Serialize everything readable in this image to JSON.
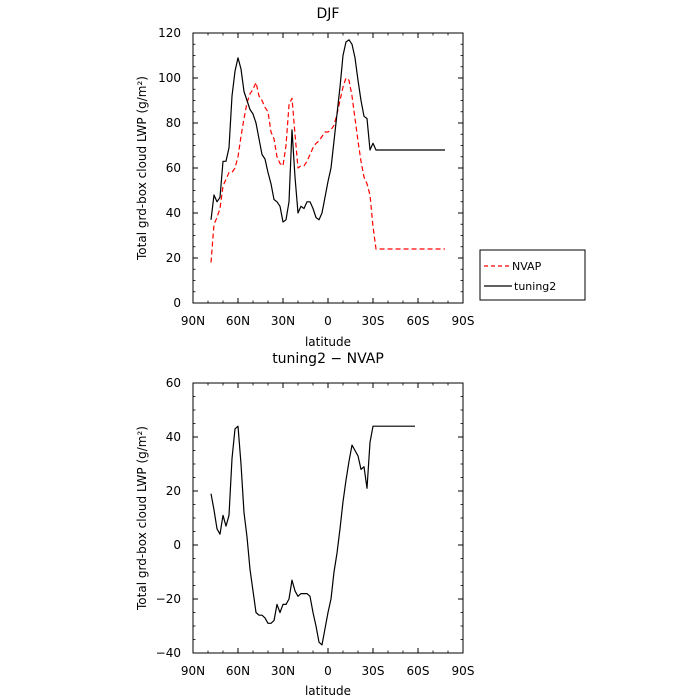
{
  "chart_data": [
    {
      "type": "line",
      "title": "DJF",
      "xlabel": "latitude",
      "ylabel": "Total grd-box cloud LWP (g/m²)",
      "xlim": [
        90,
        -90
      ],
      "ylim": [
        0,
        120
      ],
      "xticks": [
        90,
        60,
        30,
        0,
        -30,
        -60,
        -90
      ],
      "xtick_labels": [
        "90N",
        "60N",
        "30N",
        "0",
        "30S",
        "60S",
        "90S"
      ],
      "yticks": [
        0,
        20,
        40,
        60,
        80,
        100,
        120
      ],
      "ytick_labels": [
        "0",
        "20",
        "40",
        "60",
        "80",
        "100",
        "120"
      ],
      "grid": false,
      "legend": "outside-right",
      "series": [
        {
          "name": "NVAP",
          "color": "#ff0000",
          "dash": "dashed",
          "x": [
            78,
            76,
            74,
            72,
            70,
            68,
            66,
            64,
            62,
            60,
            58,
            56,
            54,
            52,
            50,
            48,
            46,
            44,
            42,
            40,
            38,
            36,
            34,
            32,
            30,
            28,
            26,
            24,
            22,
            20,
            18,
            16,
            14,
            12,
            10,
            8,
            6,
            4,
            2,
            0,
            -2,
            -4,
            -6,
            -8,
            -10,
            -12,
            -14,
            -16,
            -18,
            -20,
            -22,
            -24,
            -26,
            -28,
            -30,
            -32,
            -34,
            -36,
            -38,
            -40,
            -42,
            -44,
            -46,
            -48,
            -50,
            -52,
            -54,
            -56,
            -58,
            -60,
            -62,
            -64,
            -66,
            -68,
            -70,
            -72,
            -74,
            -76,
            -78
          ],
          "y": [
            18,
            35,
            38,
            42,
            52,
            55,
            58,
            58,
            60,
            65,
            74,
            82,
            89,
            93,
            95,
            98,
            92,
            90,
            87,
            85,
            76,
            73,
            65,
            62,
            61,
            70,
            88,
            91,
            75,
            60,
            61,
            61,
            63,
            66,
            69,
            71,
            72,
            74,
            76,
            76,
            77,
            79,
            84,
            90,
            96,
            100,
            99,
            92,
            82,
            72,
            63,
            56,
            53,
            48,
            34,
            24,
            24,
            24,
            24,
            24,
            24,
            24,
            24,
            24,
            24,
            24,
            24,
            24,
            24,
            24,
            24,
            24,
            24,
            24,
            24,
            24,
            24,
            24,
            24
          ]
        },
        {
          "name": "tuning2",
          "color": "#000000",
          "dash": "solid",
          "x": [
            78,
            76,
            74,
            72,
            70,
            68,
            66,
            64,
            62,
            60,
            58,
            56,
            54,
            52,
            50,
            48,
            46,
            44,
            42,
            40,
            38,
            36,
            34,
            32,
            30,
            28,
            26,
            24,
            22,
            20,
            18,
            16,
            14,
            12,
            10,
            8,
            6,
            4,
            2,
            0,
            -2,
            -4,
            -6,
            -8,
            -10,
            -12,
            -14,
            -16,
            -18,
            -20,
            -22,
            -24,
            -26,
            -28,
            -30,
            -32,
            -34,
            -36,
            -38,
            -40,
            -42,
            -44,
            -46,
            -48,
            -50,
            -52,
            -54,
            -56,
            -58,
            -60,
            -62,
            -64,
            -66,
            -68,
            -70,
            -72,
            -74,
            -76,
            -78
          ],
          "y": [
            37,
            48,
            45,
            47,
            63,
            63,
            69,
            92,
            103,
            109,
            104,
            94,
            90,
            86,
            84,
            80,
            73,
            66,
            64,
            58,
            53,
            46,
            45,
            43,
            36,
            37,
            45,
            77,
            56,
            40,
            43,
            42,
            45,
            45,
            42,
            38,
            37,
            40,
            47,
            54,
            60,
            72,
            84,
            96,
            110,
            116,
            117,
            115,
            109,
            99,
            90,
            83,
            82,
            68,
            71,
            68,
            68,
            68,
            68,
            68,
            68,
            68,
            68,
            68,
            68,
            68,
            68,
            68,
            68,
            68,
            68,
            68,
            68,
            68,
            68,
            68,
            68,
            68,
            68
          ]
        }
      ]
    },
    {
      "type": "line",
      "title": "tuning2 − NVAP",
      "xlabel": "latitude",
      "ylabel": "Total grd-box cloud LWP (g/m²)",
      "xlim": [
        90,
        -90
      ],
      "ylim": [
        -40,
        60
      ],
      "xticks": [
        90,
        60,
        30,
        0,
        -30,
        -60,
        -90
      ],
      "xtick_labels": [
        "90N",
        "60N",
        "30N",
        "0",
        "30S",
        "60S",
        "90S"
      ],
      "yticks": [
        -40,
        -20,
        0,
        20,
        40,
        60
      ],
      "ytick_labels": [
        "−40",
        "−20",
        "0",
        "20",
        "40",
        "60"
      ],
      "grid": false,
      "series": [
        {
          "color": "#000000",
          "dash": "solid",
          "x": [
            78,
            76,
            74,
            72,
            70,
            68,
            66,
            64,
            62,
            60,
            58,
            56,
            54,
            52,
            50,
            48,
            46,
            44,
            42,
            40,
            38,
            36,
            34,
            32,
            30,
            28,
            26,
            24,
            22,
            20,
            18,
            16,
            14,
            12,
            10,
            8,
            6,
            4,
            2,
            0,
            -2,
            -4,
            -6,
            -8,
            -10,
            -12,
            -14,
            -16,
            -18,
            -20,
            -22,
            -24,
            -26,
            -28,
            -30,
            -32,
            -34,
            -36,
            -38,
            -40,
            -42,
            -44,
            -46,
            -48,
            -50,
            -52,
            -54,
            -56,
            -58
          ],
          "y": [
            19,
            13,
            6,
            4,
            11,
            7,
            11,
            32,
            43,
            44,
            30,
            12,
            3,
            -9,
            -17,
            -25,
            -26,
            -26,
            -27,
            -29,
            -29,
            -28,
            -22,
            -25,
            -22,
            -22,
            -20,
            -13,
            -17,
            -19,
            -18,
            -18,
            -18,
            -19,
            -25,
            -30,
            -36,
            -37,
            -31,
            -25,
            -20,
            -10,
            -3,
            6,
            16,
            24,
            31,
            37,
            35,
            33,
            28,
            29,
            21,
            38,
            44,
            44,
            44,
            44,
            44,
            44,
            44,
            44,
            44,
            44,
            44,
            44,
            44,
            44,
            44
          ]
        }
      ]
    }
  ]
}
